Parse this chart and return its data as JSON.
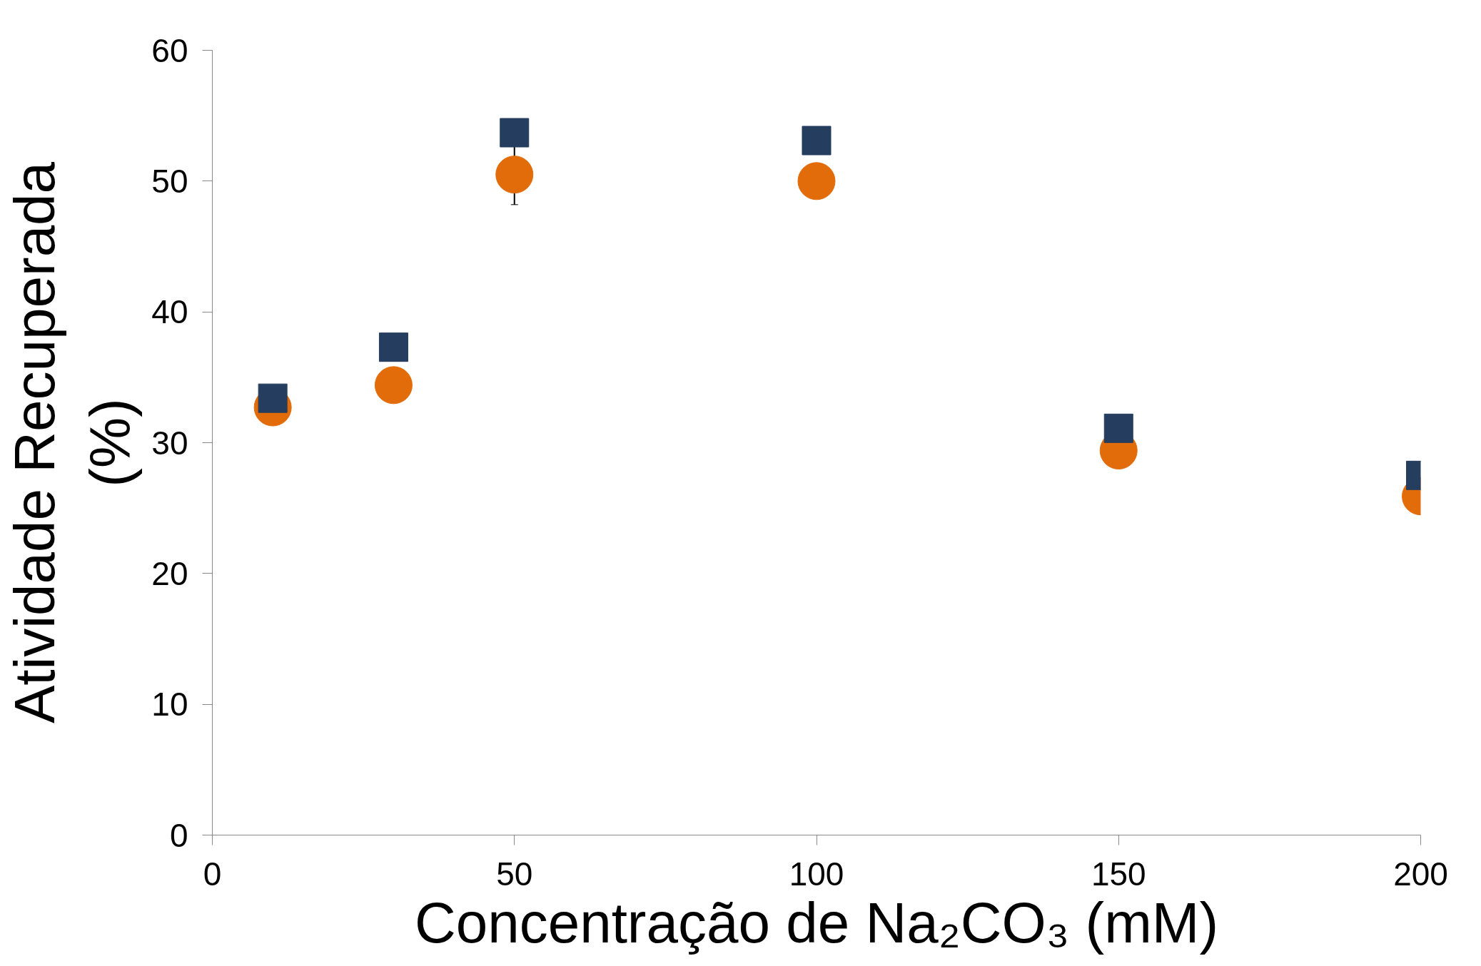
{
  "chart_data": {
    "type": "scatter",
    "xlabel": "Concentração de Na₂CO₃ (mM)",
    "ylabel": "Atividade Recuperada (%)",
    "x": [
      10,
      30,
      50,
      100,
      150,
      200
    ],
    "series": [
      {
        "color": "#e36c0a",
        "marker": "circle",
        "values": [
          32.7,
          34.4,
          50.5,
          50.0,
          29.4,
          25.9
        ],
        "errors": [
          null,
          null,
          2.3,
          null,
          null,
          null
        ]
      },
      {
        "color": "#253d5e",
        "marker": "square",
        "values": [
          33.4,
          37.3,
          53.7,
          53.1,
          31.1,
          27.5
        ]
      }
    ],
    "xlim": [
      0,
      200
    ],
    "ylim": [
      0,
      60
    ],
    "xticks": [
      0,
      50,
      100,
      150,
      200
    ],
    "yticks": [
      0,
      10,
      20,
      30,
      40,
      50,
      60
    ],
    "grid": false
  }
}
